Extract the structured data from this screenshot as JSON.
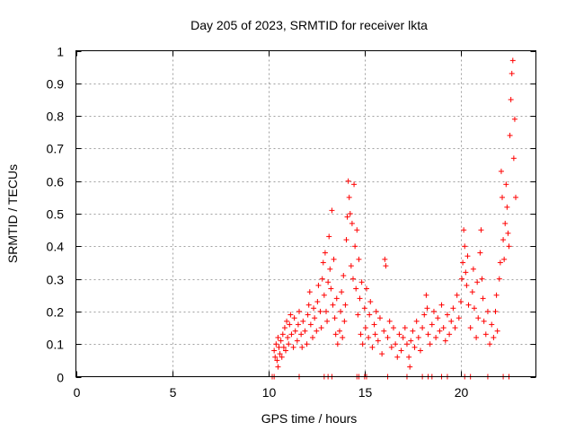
{
  "chart_data": {
    "type": "scatter",
    "title": "Day 205 of 2023, SRMTID for receiver lkta",
    "xlabel": "GPS time / hours",
    "ylabel": "SRMTID / TECUs",
    "xlim": [
      0,
      23.9
    ],
    "ylim": [
      0,
      1
    ],
    "xticks": [
      0,
      5,
      10,
      15,
      20
    ],
    "yticks": [
      0,
      0.1,
      0.2,
      0.3,
      0.4,
      0.5,
      0.6,
      0.7,
      0.8,
      0.9,
      1
    ],
    "xtick_labels": [
      "0",
      "5",
      "10",
      "15",
      "20"
    ],
    "ytick_labels": [
      "0",
      "0.1",
      "0.2",
      "0.3",
      "0.4",
      "0.5",
      "0.6",
      "0.7",
      "0.8",
      "0.9",
      "1"
    ],
    "grid": true,
    "marker": "+",
    "color": "#ff0000",
    "series": [
      {
        "name": "SRMTID",
        "points": [
          [
            10.2,
            0.0
          ],
          [
            10.3,
            0.08
          ],
          [
            10.35,
            0.06
          ],
          [
            10.4,
            0.1
          ],
          [
            10.45,
            0.05
          ],
          [
            10.5,
            0.03
          ],
          [
            10.5,
            0.12
          ],
          [
            10.55,
            0.09
          ],
          [
            10.6,
            0.07
          ],
          [
            10.65,
            0.11
          ],
          [
            10.7,
            0.06
          ],
          [
            10.75,
            0.13
          ],
          [
            10.8,
            0.09
          ],
          [
            10.85,
            0.15
          ],
          [
            10.9,
            0.08
          ],
          [
            10.95,
            0.17
          ],
          [
            11.0,
            0.12
          ],
          [
            11.05,
            0.1
          ],
          [
            11.1,
            0.16
          ],
          [
            11.15,
            0.19
          ],
          [
            11.2,
            0.13
          ],
          [
            11.3,
            0.09
          ],
          [
            11.35,
            0.18
          ],
          [
            11.4,
            0.14
          ],
          [
            11.5,
            0.11
          ],
          [
            11.55,
            0.16
          ],
          [
            11.6,
            0.2
          ],
          [
            11.7,
            0.13
          ],
          [
            11.75,
            0.09
          ],
          [
            11.8,
            0.17
          ],
          [
            11.9,
            0.14
          ],
          [
            12.0,
            0.1
          ],
          [
            12.05,
            0.19
          ],
          [
            12.1,
            0.22
          ],
          [
            12.15,
            0.26
          ],
          [
            12.2,
            0.16
          ],
          [
            12.3,
            0.12
          ],
          [
            12.35,
            0.21
          ],
          [
            12.4,
            0.18
          ],
          [
            12.5,
            0.14
          ],
          [
            12.55,
            0.23
          ],
          [
            12.6,
            0.28
          ],
          [
            12.7,
            0.2
          ],
          [
            12.75,
            0.15
          ],
          [
            12.8,
            0.3
          ],
          [
            12.85,
            0.35
          ],
          [
            12.9,
            0.25
          ],
          [
            12.95,
            0.38
          ],
          [
            13.0,
            0.2
          ],
          [
            13.05,
            0.17
          ],
          [
            13.1,
            0.29
          ],
          [
            13.15,
            0.43
          ],
          [
            13.2,
            0.33
          ],
          [
            13.25,
            0.27
          ],
          [
            13.3,
            0.51
          ],
          [
            13.35,
            0.22
          ],
          [
            13.4,
            0.36
          ],
          [
            13.45,
            0.18
          ],
          [
            13.5,
            0.13
          ],
          [
            13.55,
            0.24
          ],
          [
            13.6,
            0.1
          ],
          [
            13.7,
            0.14
          ],
          [
            13.75,
            0.2
          ],
          [
            13.8,
            0.26
          ],
          [
            13.85,
            0.12
          ],
          [
            13.9,
            0.31
          ],
          [
            13.95,
            0.17
          ],
          [
            14.0,
            0.22
          ],
          [
            14.05,
            0.42
          ],
          [
            14.1,
            0.49
          ],
          [
            14.15,
            0.6
          ],
          [
            14.2,
            0.55
          ],
          [
            14.25,
            0.5
          ],
          [
            14.3,
            0.34
          ],
          [
            14.35,
            0.47
          ],
          [
            14.4,
            0.3
          ],
          [
            14.45,
            0.59
          ],
          [
            14.5,
            0.4
          ],
          [
            14.55,
            0.27
          ],
          [
            14.6,
            0.45
          ],
          [
            14.65,
            0.19
          ],
          [
            14.7,
            0.36
          ],
          [
            14.75,
            0.24
          ],
          [
            14.8,
            0.13
          ],
          [
            14.85,
            0.29
          ],
          [
            14.9,
            0.1
          ],
          [
            15.0,
            0.21
          ],
          [
            15.05,
            0.15
          ],
          [
            15.1,
            0.27
          ],
          [
            15.2,
            0.12
          ],
          [
            15.25,
            0.19
          ],
          [
            15.3,
            0.23
          ],
          [
            15.4,
            0.09
          ],
          [
            15.5,
            0.16
          ],
          [
            15.55,
            0.13
          ],
          [
            15.6,
            0.2
          ],
          [
            15.7,
            0.11
          ],
          [
            15.8,
            0.18
          ],
          [
            15.9,
            0.07
          ],
          [
            16.0,
            0.14
          ],
          [
            16.05,
            0.36
          ],
          [
            16.1,
            0.34
          ],
          [
            16.2,
            0.12
          ],
          [
            16.3,
            0.17
          ],
          [
            16.4,
            0.09
          ],
          [
            16.5,
            0.15
          ],
          [
            16.6,
            0.1
          ],
          [
            16.7,
            0.06
          ],
          [
            16.8,
            0.13
          ],
          [
            16.9,
            0.08
          ],
          [
            17.0,
            0.12
          ],
          [
            17.1,
            0.15
          ],
          [
            17.2,
            0.1
          ],
          [
            17.3,
            0.06
          ],
          [
            17.35,
            0.03
          ],
          [
            17.4,
            0.11
          ],
          [
            17.5,
            0.14
          ],
          [
            17.6,
            0.09
          ],
          [
            17.7,
            0.17
          ],
          [
            17.8,
            0.12
          ],
          [
            17.9,
            0.08
          ],
          [
            18.0,
            0.15
          ],
          [
            18.1,
            0.19
          ],
          [
            18.2,
            0.25
          ],
          [
            18.25,
            0.21
          ],
          [
            18.3,
            0.13
          ],
          [
            18.4,
            0.1
          ],
          [
            18.5,
            0.16
          ],
          [
            18.6,
            0.2
          ],
          [
            18.7,
            0.12
          ],
          [
            18.8,
            0.18
          ],
          [
            18.9,
            0.14
          ],
          [
            19.0,
            0.22
          ],
          [
            19.1,
            0.15
          ],
          [
            19.2,
            0.11
          ],
          [
            19.3,
            0.19
          ],
          [
            19.4,
            0.13
          ],
          [
            19.5,
            0.17
          ],
          [
            19.6,
            0.21
          ],
          [
            19.7,
            0.15
          ],
          [
            19.8,
            0.25
          ],
          [
            19.9,
            0.18
          ],
          [
            20.0,
            0.23
          ],
          [
            20.05,
            0.3
          ],
          [
            20.1,
            0.35
          ],
          [
            20.15,
            0.45
          ],
          [
            20.2,
            0.4
          ],
          [
            20.25,
            0.32
          ],
          [
            20.3,
            0.28
          ],
          [
            20.35,
            0.37
          ],
          [
            20.4,
            0.22
          ],
          [
            20.5,
            0.15
          ],
          [
            20.6,
            0.26
          ],
          [
            20.65,
            0.33
          ],
          [
            20.7,
            0.21
          ],
          [
            20.8,
            0.12
          ],
          [
            20.85,
            0.29
          ],
          [
            20.9,
            0.18
          ],
          [
            21.0,
            0.38
          ],
          [
            21.05,
            0.45
          ],
          [
            21.1,
            0.3
          ],
          [
            21.15,
            0.24
          ],
          [
            21.2,
            0.17
          ],
          [
            21.3,
            0.13
          ],
          [
            21.4,
            0.2
          ],
          [
            21.5,
            0.1
          ],
          [
            21.6,
            0.16
          ],
          [
            21.7,
            0.12
          ],
          [
            21.8,
            0.2
          ],
          [
            21.85,
            0.25
          ],
          [
            21.9,
            0.14
          ],
          [
            22.0,
            0.3
          ],
          [
            22.05,
            0.35
          ],
          [
            22.1,
            0.63
          ],
          [
            22.15,
            0.55
          ],
          [
            22.2,
            0.42
          ],
          [
            22.25,
            0.36
          ],
          [
            22.3,
            0.47
          ],
          [
            22.35,
            0.59
          ],
          [
            22.4,
            0.52
          ],
          [
            22.45,
            0.44
          ],
          [
            22.5,
            0.4
          ],
          [
            22.55,
            0.74
          ],
          [
            22.6,
            0.85
          ],
          [
            22.65,
            0.93
          ],
          [
            22.7,
            0.97
          ],
          [
            22.75,
            0.67
          ],
          [
            22.8,
            0.79
          ],
          [
            22.85,
            0.55
          ]
        ]
      }
    ],
    "baseline_hours": [
      10.2,
      10.3,
      11.6,
      12.9,
      13.1,
      13.3,
      14.6,
      14.7,
      15.0,
      15.1,
      16.2,
      17.2,
      18.0,
      18.3,
      18.5,
      19.0,
      19.3,
      20.2,
      20.5,
      21.4,
      22.2,
      22.5
    ]
  }
}
